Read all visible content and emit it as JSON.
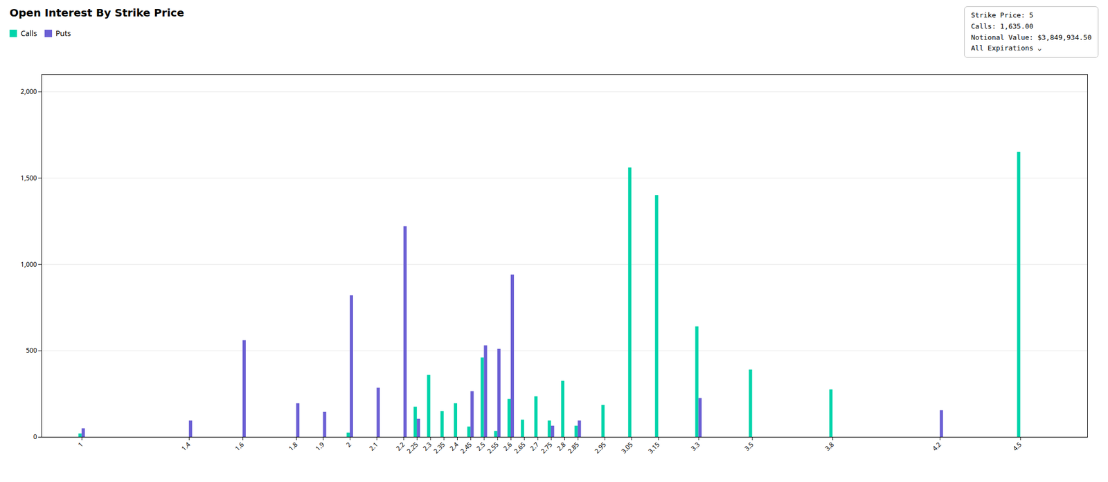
{
  "chart_data": {
    "type": "bar",
    "title": "Open Interest By Strike Price",
    "x": [
      1.0,
      1.4,
      1.6,
      1.8,
      1.9,
      2.0,
      2.1,
      2.2,
      2.25,
      2.3,
      2.35,
      2.4,
      2.45,
      2.5,
      2.55,
      2.6,
      2.65,
      2.7,
      2.75,
      2.8,
      2.85,
      2.95,
      3.05,
      3.15,
      3.3,
      3.5,
      3.8,
      4.2,
      4.5
    ],
    "series": [
      {
        "name": "Calls",
        "color": "#00d4aa",
        "values": [
          20,
          0,
          0,
          0,
          0,
          25,
          0,
          0,
          175,
          360,
          150,
          195,
          60,
          460,
          35,
          220,
          100,
          235,
          95,
          325,
          65,
          185,
          1560,
          1400,
          640,
          390,
          275,
          0,
          1650
        ]
      },
      {
        "name": "Puts",
        "color": "#6B5FD4",
        "values": [
          50,
          95,
          560,
          195,
          145,
          820,
          285,
          1220,
          105,
          0,
          0,
          0,
          265,
          530,
          510,
          940,
          0,
          0,
          65,
          0,
          95,
          0,
          0,
          0,
          225,
          0,
          0,
          155,
          0
        ]
      }
    ],
    "xlim": [
      0.85,
      4.75
    ],
    "xticks": [
      1.0,
      1.4,
      1.6,
      1.8,
      1.9,
      2.0,
      2.1,
      2.2,
      2.25,
      2.3,
      2.35,
      2.4,
      2.45,
      2.5,
      2.55,
      2.6,
      2.65,
      2.7,
      2.75,
      2.8,
      2.85,
      2.95,
      3.05,
      3.15,
      3.3,
      3.5,
      3.8,
      4.2,
      4.5
    ],
    "ylim": [
      0,
      2100
    ],
    "yticks": [
      0,
      500,
      1000,
      1500,
      2000
    ],
    "grid": "y",
    "legend": "upper left",
    "annotations": [
      "Strike Price: 5",
      "Calls: 1,635.00",
      "Notional Value: $3,849,934.50",
      "All Expirations  ⌄"
    ]
  }
}
